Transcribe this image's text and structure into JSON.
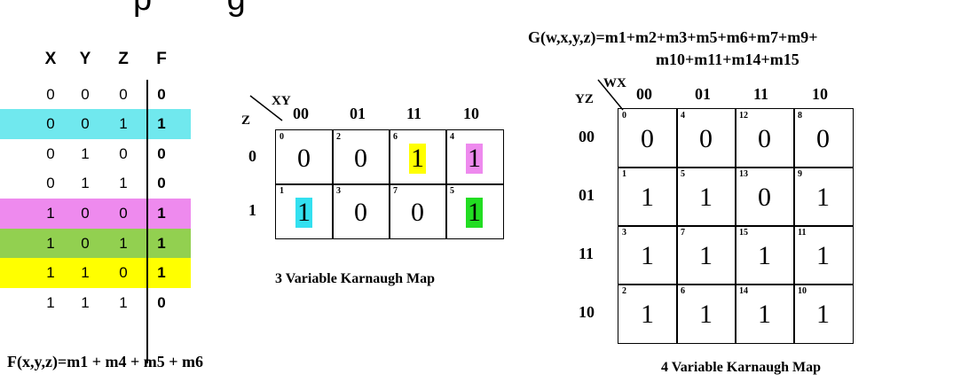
{
  "header_fragment": "p        g",
  "truth_table": {
    "headers": [
      "X",
      "Y",
      "Z",
      "F"
    ],
    "rows": [
      {
        "x": "0",
        "y": "0",
        "z": "0",
        "f": "0",
        "color": ""
      },
      {
        "x": "0",
        "y": "0",
        "z": "1",
        "f": "1",
        "color": "#70e8ee"
      },
      {
        "x": "0",
        "y": "1",
        "z": "0",
        "f": "0",
        "color": ""
      },
      {
        "x": "0",
        "y": "1",
        "z": "1",
        "f": "0",
        "color": ""
      },
      {
        "x": "1",
        "y": "0",
        "z": "0",
        "f": "1",
        "color": "#ee8aee"
      },
      {
        "x": "1",
        "y": "0",
        "z": "1",
        "f": "1",
        "color": "#92d050"
      },
      {
        "x": "1",
        "y": "1",
        "z": "0",
        "f": "1",
        "color": "#ffff00"
      },
      {
        "x": "1",
        "y": "1",
        "z": "1",
        "f": "0",
        "color": ""
      }
    ]
  },
  "f_expression": "F(x,y,z)=m1 + m4 + m5 + m6",
  "kmap3": {
    "caption": "3 Variable Karnaugh Map",
    "corner_top": "XY",
    "corner_left": "Z",
    "col_labels": [
      "00",
      "01",
      "11",
      "10"
    ],
    "row_labels": [
      "0",
      "1"
    ],
    "cells": [
      [
        {
          "m": "0",
          "v": "0",
          "hl": ""
        },
        {
          "m": "2",
          "v": "0",
          "hl": ""
        },
        {
          "m": "6",
          "v": "1",
          "hl": "#ffff00"
        },
        {
          "m": "4",
          "v": "1",
          "hl": "#ee8aee"
        }
      ],
      [
        {
          "m": "1",
          "v": "1",
          "hl": "#33e0f0"
        },
        {
          "m": "3",
          "v": "0",
          "hl": ""
        },
        {
          "m": "7",
          "v": "0",
          "hl": ""
        },
        {
          "m": "5",
          "v": "1",
          "hl": "#22dd22"
        }
      ]
    ]
  },
  "kmap4": {
    "expression_line1": "G(w,x,y,z)=m1+m2+m3+m5+m6+m7+m9+",
    "expression_line2": "m10+m11+m14+m15",
    "caption": "4 Variable Karnaugh Map",
    "corner_top": "WX",
    "corner_left": "YZ",
    "col_labels": [
      "00",
      "01",
      "11",
      "10"
    ],
    "row_labels": [
      "00",
      "01",
      "11",
      "10"
    ],
    "cells": [
      [
        {
          "m": "0",
          "v": "0"
        },
        {
          "m": "4",
          "v": "0"
        },
        {
          "m": "12",
          "v": "0"
        },
        {
          "m": "8",
          "v": "0"
        }
      ],
      [
        {
          "m": "1",
          "v": "1"
        },
        {
          "m": "5",
          "v": "1"
        },
        {
          "m": "13",
          "v": "0"
        },
        {
          "m": "9",
          "v": "1"
        }
      ],
      [
        {
          "m": "3",
          "v": "1"
        },
        {
          "m": "7",
          "v": "1"
        },
        {
          "m": "15",
          "v": "1"
        },
        {
          "m": "11",
          "v": "1"
        }
      ],
      [
        {
          "m": "2",
          "v": "1"
        },
        {
          "m": "6",
          "v": "1"
        },
        {
          "m": "14",
          "v": "1"
        },
        {
          "m": "10",
          "v": "1"
        }
      ]
    ]
  }
}
